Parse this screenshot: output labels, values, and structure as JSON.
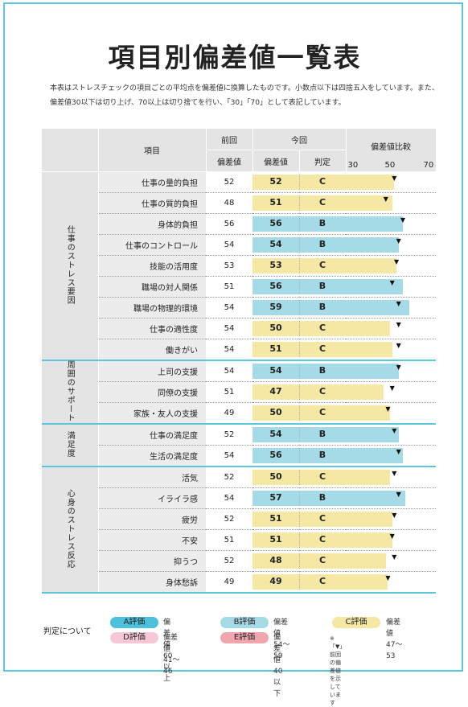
{
  "title": "項目別偏差値一覧表",
  "description": "本表はストレスチェックの項目ごとの平均点を偏差値に換算したものです。小数点以下は四捨五入をしています。また、偏差値30以下は切り上げ、70以上は切り捨てを行い、「30」「70」として表記しています。",
  "headers": {
    "item": "項目",
    "previous": "前回",
    "current": "今回",
    "score": "偏差値",
    "grade": "判定",
    "compare": "偏差値比較",
    "scale": [
      "30",
      "50",
      "70"
    ]
  },
  "colors": {
    "border": "#5cc6de",
    "bar_B": "#a5dbe6",
    "bar_C": "#f5e7a4",
    "grade_A": "#4cc0dc",
    "grade_B": "#a5dbe6",
    "grade_C": "#f5e7a4",
    "grade_D": "#f6c8d6",
    "grade_E": "#f0a6ad"
  },
  "groups": [
    {
      "name": "仕事のストレス要因",
      "rows": [
        {
          "item": "仕事の量的負担",
          "prev": "52",
          "score": "52",
          "grade": "C",
          "score_num": 52,
          "prev_num": 52
        },
        {
          "item": "仕事の質的負担",
          "prev": "48",
          "score": "51",
          "grade": "C",
          "score_num": 51,
          "prev_num": 48
        },
        {
          "item": "身体的負担",
          "prev": "56",
          "score": "56",
          "grade": "B",
          "score_num": 56,
          "prev_num": 56
        },
        {
          "item": "仕事のコントロール",
          "prev": "54",
          "score": "54",
          "grade": "B",
          "score_num": 54,
          "prev_num": 54
        },
        {
          "item": "技能の活用度",
          "prev": "53",
          "score": "53",
          "grade": "C",
          "score_num": 53,
          "prev_num": 53
        },
        {
          "item": "職場の対人関係",
          "prev": "51",
          "score": "56",
          "grade": "B",
          "score_num": 56,
          "prev_num": 51
        },
        {
          "item": "職場の物理的環境",
          "prev": "54",
          "score": "59",
          "grade": "B",
          "score_num": 59,
          "prev_num": 54
        },
        {
          "item": "仕事の適性度",
          "prev": "54",
          "score": "50",
          "grade": "C",
          "score_num": 50,
          "prev_num": 54
        },
        {
          "item": "働きがい",
          "prev": "54",
          "score": "51",
          "grade": "C",
          "score_num": 51,
          "prev_num": 54
        }
      ]
    },
    {
      "name": "周囲のサポート",
      "rows": [
        {
          "item": "上司の支援",
          "prev": "54",
          "score": "54",
          "grade": "B",
          "score_num": 54,
          "prev_num": 54
        },
        {
          "item": "同僚の支援",
          "prev": "51",
          "score": "47",
          "grade": "C",
          "score_num": 47,
          "prev_num": 51
        },
        {
          "item": "家族・友人の支援",
          "prev": "49",
          "score": "50",
          "grade": "C",
          "score_num": 50,
          "prev_num": 49
        }
      ]
    },
    {
      "name": "満足度",
      "rows": [
        {
          "item": "仕事の満足度",
          "prev": "52",
          "score": "54",
          "grade": "B",
          "score_num": 54,
          "prev_num": 52
        },
        {
          "item": "生活の満足度",
          "prev": "54",
          "score": "56",
          "grade": "B",
          "score_num": 56,
          "prev_num": 54
        }
      ]
    },
    {
      "name": "心身のストレス反応",
      "rows": [
        {
          "item": "活気",
          "prev": "52",
          "score": "50",
          "grade": "C",
          "score_num": 50,
          "prev_num": 52
        },
        {
          "item": "イライラ感",
          "prev": "54",
          "score": "57",
          "grade": "B",
          "score_num": 57,
          "prev_num": 54
        },
        {
          "item": "疲労",
          "prev": "52",
          "score": "51",
          "grade": "C",
          "score_num": 51,
          "prev_num": 52
        },
        {
          "item": "不安",
          "prev": "51",
          "score": "51",
          "grade": "C",
          "score_num": 51,
          "prev_num": 51
        },
        {
          "item": "抑うつ",
          "prev": "52",
          "score": "48",
          "grade": "C",
          "score_num": 48,
          "prev_num": 52
        },
        {
          "item": "身体愁訴",
          "prev": "49",
          "score": "49",
          "grade": "C",
          "score_num": 49,
          "prev_num": 49
        }
      ]
    }
  ],
  "legend": {
    "title": "判定について",
    "items": [
      {
        "label": "A評価",
        "text": "偏差値60以上",
        "color": "#4cc0dc"
      },
      {
        "label": "B評価",
        "text": "偏差値54〜59",
        "color": "#a5dbe6"
      },
      {
        "label": "C評価",
        "text": "偏差値47〜53",
        "color": "#f5e7a4"
      },
      {
        "label": "D評価",
        "text": "偏差値41〜46",
        "color": "#f6c8d6"
      },
      {
        "label": "E評価",
        "text": "偏差値40以下",
        "color": "#f0a6ad"
      }
    ],
    "note": "※「▼」前回の偏差値を示しています"
  }
}
